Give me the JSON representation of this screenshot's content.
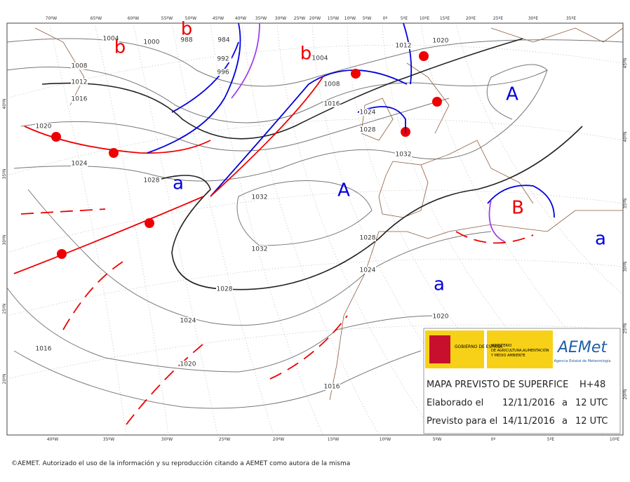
{
  "map": {
    "top_labels": [
      "70ºW",
      "65ºW",
      "60ºW",
      "55ºW",
      "50ºW",
      "45ºW",
      "40ºW",
      "35ºW",
      "30ºW",
      "25ºW",
      "20ºW",
      "15ºW",
      "10ºW",
      "5ºW",
      "0º",
      "5ºE",
      "10ºE",
      "15ºE",
      "20ºE",
      "25ºE",
      "30ºE",
      "35ºE"
    ],
    "bottom_labels": [
      "40ºW",
      "35ºW",
      "30ºW",
      "25ºW",
      "20ºW",
      "15ºW",
      "10ºW",
      "5ºW",
      "0º",
      "5ºE",
      "10ºE"
    ],
    "left_labels": [
      "40ºN",
      "35ºN",
      "30ºN",
      "25ºN",
      "20ºN"
    ],
    "right_labels": [
      "45ºN",
      "40ºN",
      "35ºN",
      "30ºN",
      "25ºN",
      "20ºN"
    ],
    "isobar_labels": [
      "1004",
      "1000",
      "988",
      "984",
      "992",
      "996",
      "1008",
      "1012",
      "1016",
      "1020",
      "1024",
      "1028",
      "1004",
      "1008",
      "1016",
      "1012",
      "1020",
      "1024",
      "1028",
      "1032",
      "1032",
      "1032",
      "1028",
      "1024",
      "1028",
      "1020",
      "1024",
      "1016",
      "1020",
      "1016"
    ],
    "centers": [
      "b",
      "b",
      "b",
      "A",
      "a",
      "A",
      "B",
      "a",
      "a"
    ]
  },
  "info": {
    "gov": "GOBIERNO DE ESPAÑA",
    "ministry": [
      "MINISTERIO",
      "DE AGRICULTURA,ALIMENTACIÓN",
      "Y MEDIO AMBIENTE"
    ],
    "brand": "AEMet",
    "agency": "Agencia Estatal de Meteorología",
    "title": "MAPA PREVISTO DE SUPERFICE",
    "lead": "H+48",
    "made_label": "Elaborado el",
    "made_date": "12/11/2016",
    "made_at": "a",
    "made_time": "12 UTC",
    "valid_label": "Previsto para el",
    "valid_date": "14/11/2016",
    "valid_at": "a",
    "valid_time": "12 UTC"
  },
  "footer": "©AEMET. Autorizado el uso de la información y su reproducción citando a AEMET como autora de la misma"
}
